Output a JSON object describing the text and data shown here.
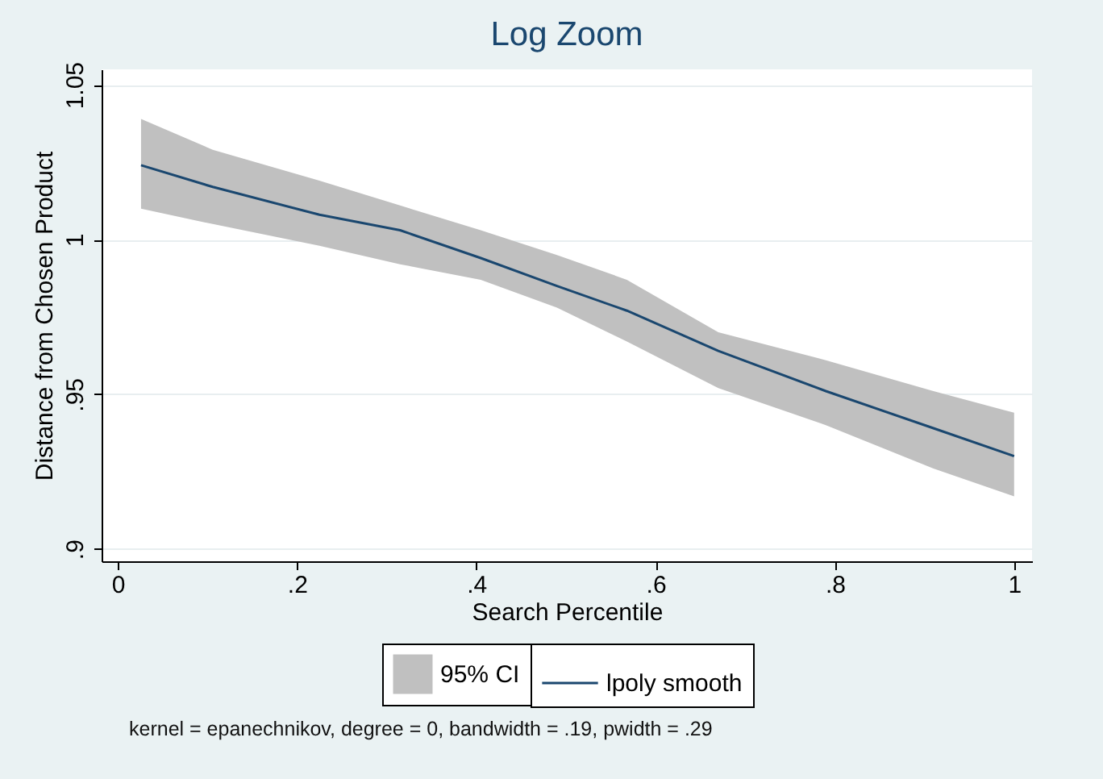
{
  "chart_data": {
    "type": "line",
    "title": "Log Zoom",
    "xlabel": "Search Percentile",
    "ylabel": "Distance from Chosen Product",
    "x": [
      0.026,
      0.106,
      0.225,
      0.315,
      0.405,
      0.49,
      0.568,
      0.67,
      0.79,
      0.91,
      1.0
    ],
    "series": [
      {
        "name": "lpoly smooth",
        "color": "#1a476f",
        "values": [
          1.024,
          1.017,
          1.008,
          1.003,
          0.994,
          0.985,
          0.977,
          0.964,
          0.951,
          0.939,
          0.93
        ],
        "lower": [
          1.01,
          1.005,
          0.998,
          0.992,
          0.987,
          0.978,
          0.967,
          0.952,
          0.94,
          0.926,
          0.917
        ],
        "upper": [
          1.039,
          1.029,
          1.019,
          1.011,
          1.003,
          0.995,
          0.987,
          0.97,
          0.961,
          0.951,
          0.944
        ]
      }
    ],
    "xlim": [
      -0.018,
      1.02
    ],
    "ylim": [
      0.896,
      1.055
    ],
    "xticks": [
      0,
      {
        "value": 0.2,
        "label": ".2"
      },
      {
        "value": 0.4,
        "label": ".4"
      },
      {
        "value": 0.6,
        "label": ".6"
      },
      {
        "value": 0.8,
        "label": ".8"
      },
      1
    ],
    "yticks": [
      {
        "value": 0.9,
        "label": ".9"
      },
      {
        "value": 0.95,
        "label": ".95"
      },
      1,
      1.05
    ],
    "grid": "y",
    "legend": "bottom",
    "marker": "none",
    "line_style": "solid",
    "annotations": [
      "95% CI",
      "kernel = epanechnikov, degree = 0, bandwidth = .19, pwidth = .29"
    ]
  }
}
